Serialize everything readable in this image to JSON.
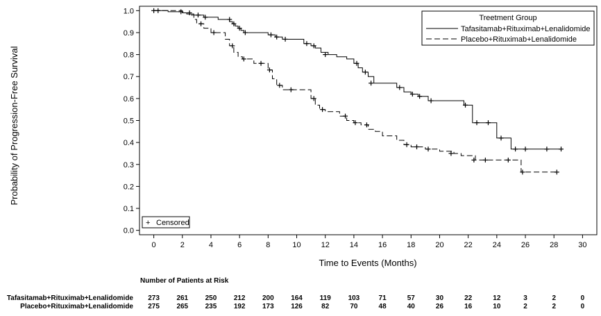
{
  "chart_data": {
    "type": "line",
    "subtype": "kaplan-meier step curve",
    "xlabel": "Time to Events (Months)",
    "ylabel": "Probability of Progression-Free Survival",
    "xlim": [
      -1,
      31
    ],
    "ylim": [
      -0.02,
      1.02
    ],
    "x_ticks": [
      0,
      2,
      4,
      6,
      8,
      10,
      12,
      14,
      16,
      18,
      20,
      22,
      24,
      26,
      28,
      30
    ],
    "y_ticks": [
      0.0,
      0.1,
      0.2,
      0.3,
      0.4,
      0.5,
      0.6,
      0.7,
      0.8,
      0.9,
      1.0
    ],
    "y_tick_labels": [
      "0.0",
      "0.1",
      "0.2",
      "0.3",
      "0.4",
      "0.5",
      "0.6",
      "0.7",
      "0.8",
      "0.9",
      "1.0"
    ],
    "grid": false,
    "legend": {
      "title": "Treetment Group",
      "placement": "top-right",
      "entries": [
        "Tafasitamab+Rituximab+Lenalidomide",
        "Placebo+Rituximab+Lenalidomide"
      ]
    },
    "censor_legend": {
      "label": "Censored",
      "symbol": "+",
      "placement": "bottom-left"
    },
    "series": [
      {
        "name": "Tafasitamab+Rituximab+Lenalidomide",
        "line_style": "solid",
        "color": "#000000",
        "x": [
          0,
          1,
          2,
          2.3,
          2.8,
          3.5,
          4.5,
          5.2,
          5.3,
          5.5,
          5.7,
          5.9,
          6.1,
          6.3,
          7,
          8,
          8.5,
          9,
          10.5,
          11,
          11.3,
          11.7,
          12.2,
          12.8,
          13.5,
          14,
          14.3,
          14.6,
          15,
          15.4,
          16.5,
          17,
          17.5,
          18,
          18.5,
          19.2,
          20,
          21.7,
          22.3,
          23,
          24,
          25,
          26,
          28.5
        ],
        "y": [
          1.0,
          0.995,
          0.99,
          0.985,
          0.98,
          0.97,
          0.96,
          0.96,
          0.95,
          0.94,
          0.93,
          0.92,
          0.91,
          0.9,
          0.9,
          0.89,
          0.88,
          0.87,
          0.85,
          0.84,
          0.83,
          0.81,
          0.8,
          0.79,
          0.78,
          0.76,
          0.74,
          0.72,
          0.7,
          0.67,
          0.67,
          0.65,
          0.63,
          0.62,
          0.61,
          0.59,
          0.59,
          0.57,
          0.49,
          0.49,
          0.42,
          0.37,
          0.37,
          0.37
        ],
        "censored": [
          [
            0,
            1.0
          ],
          [
            1.9,
            0.995
          ],
          [
            2.5,
            0.99
          ],
          [
            3.1,
            0.98
          ],
          [
            3.6,
            0.97
          ],
          [
            5.3,
            0.96
          ],
          [
            5.6,
            0.94
          ],
          [
            6.0,
            0.92
          ],
          [
            6.4,
            0.9
          ],
          [
            8.2,
            0.89
          ],
          [
            8.6,
            0.88
          ],
          [
            9.2,
            0.87
          ],
          [
            10.7,
            0.85
          ],
          [
            11.2,
            0.84
          ],
          [
            12.0,
            0.8
          ],
          [
            14.2,
            0.76
          ],
          [
            14.8,
            0.72
          ],
          [
            15.2,
            0.67
          ],
          [
            17.2,
            0.65
          ],
          [
            18.1,
            0.62
          ],
          [
            18.6,
            0.61
          ],
          [
            19.4,
            0.59
          ],
          [
            21.8,
            0.57
          ],
          [
            22.6,
            0.49
          ],
          [
            23.4,
            0.49
          ],
          [
            24.3,
            0.42
          ],
          [
            25.3,
            0.37
          ],
          [
            26.0,
            0.37
          ],
          [
            27.5,
            0.37
          ],
          [
            28.5,
            0.37
          ]
        ]
      },
      {
        "name": "Placebo+Rituximab+Lenalidomide",
        "line_style": "dashed",
        "color": "#000000",
        "x": [
          0,
          2,
          2.5,
          2.8,
          3,
          3.5,
          4,
          5,
          5.3,
          5.6,
          5.9,
          6.2,
          7,
          8,
          8.3,
          8.6,
          9,
          11,
          11.3,
          11.6,
          12,
          13,
          13.5,
          14,
          14.5,
          15,
          15.5,
          16,
          17,
          17.5,
          18,
          19,
          20,
          21,
          21.5,
          22.5,
          24,
          25.7,
          28.2
        ],
        "y": [
          1.0,
          0.99,
          0.98,
          0.96,
          0.94,
          0.92,
          0.9,
          0.87,
          0.84,
          0.81,
          0.79,
          0.78,
          0.76,
          0.73,
          0.69,
          0.66,
          0.64,
          0.6,
          0.57,
          0.55,
          0.54,
          0.52,
          0.5,
          0.49,
          0.48,
          0.46,
          0.45,
          0.43,
          0.41,
          0.39,
          0.38,
          0.37,
          0.36,
          0.35,
          0.34,
          0.32,
          0.32,
          0.265,
          0.265
        ],
        "censored": [
          [
            0.3,
            1.0
          ],
          [
            3.3,
            0.94
          ],
          [
            4.2,
            0.9
          ],
          [
            5.5,
            0.84
          ],
          [
            6.3,
            0.78
          ],
          [
            7.5,
            0.76
          ],
          [
            8.1,
            0.73
          ],
          [
            8.8,
            0.66
          ],
          [
            9.6,
            0.64
          ],
          [
            11.2,
            0.6
          ],
          [
            11.8,
            0.55
          ],
          [
            13.4,
            0.52
          ],
          [
            14.1,
            0.49
          ],
          [
            14.9,
            0.48
          ],
          [
            17.7,
            0.39
          ],
          [
            18.4,
            0.38
          ],
          [
            19.2,
            0.37
          ],
          [
            20.8,
            0.35
          ],
          [
            22.4,
            0.32
          ],
          [
            23.2,
            0.32
          ],
          [
            24.8,
            0.32
          ],
          [
            25.8,
            0.265
          ],
          [
            28.2,
            0.265
          ]
        ]
      }
    ]
  },
  "risk_table": {
    "title": "Number of Patients at Risk",
    "times": [
      0,
      2,
      4,
      6,
      8,
      10,
      12,
      14,
      16,
      18,
      20,
      22,
      24,
      26,
      28,
      30
    ],
    "rows": [
      {
        "label": "Tafasitamab+Rituximab+Lenalidomide",
        "values": [
          "273",
          "261",
          "250",
          "212",
          "200",
          "164",
          "119",
          "103",
          "71",
          "57",
          "30",
          "22",
          "12",
          "3",
          "2",
          "0"
        ]
      },
      {
        "label": "Placebo+Rituximab+Lenalidomide",
        "values": [
          "275",
          "265",
          "235",
          "192",
          "173",
          "126",
          "82",
          "70",
          "48",
          "40",
          "26",
          "16",
          "10",
          "2",
          "2",
          "0"
        ]
      }
    ]
  }
}
